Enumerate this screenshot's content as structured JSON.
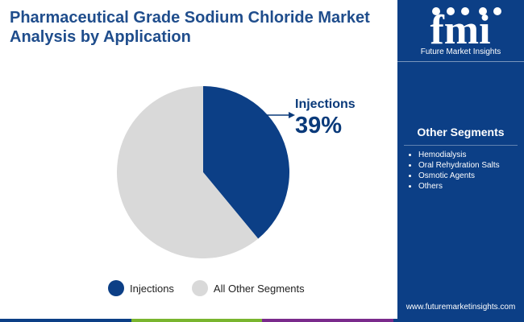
{
  "header": {
    "title": "Pharmaceutical Grade Sodium Chloride Market Analysis by Application"
  },
  "chart_data": {
    "type": "pie",
    "title": "Pharmaceutical Grade Sodium Chloride Market Analysis by Application",
    "categories": [
      "Injections",
      "All Other Segments"
    ],
    "values": [
      39,
      61
    ],
    "unit": "%",
    "colors": [
      "#0c3f86",
      "#d9d9d9"
    ],
    "highlight": {
      "label": "Injections",
      "value_text": "39%"
    },
    "legend_position": "bottom"
  },
  "legend": {
    "items": [
      {
        "label": "Injections",
        "color": "#0c3f86"
      },
      {
        "label": "All Other Segments",
        "color": "#d9d9d9"
      }
    ]
  },
  "sidebar": {
    "logo_text": "fmi",
    "logo_subtitle": "Future Market Insights",
    "heading": "Other Segments",
    "segments": [
      "Hemodialysis",
      "Oral Rehydration Salts",
      "Osmotic Agents",
      "Others"
    ],
    "website": "www.futuremarketinsights.com"
  },
  "colors": {
    "brand_blue": "#0c3f86",
    "title_blue": "#1f4d8c",
    "bottom_bar": [
      "#0c3f86",
      "#79b52e",
      "#7a2a8c",
      "#0c3f86"
    ]
  }
}
